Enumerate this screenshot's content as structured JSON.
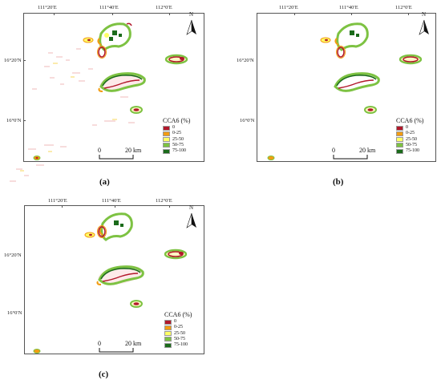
{
  "lon_labels": [
    "111°20′E",
    "111°40′E",
    "112°0′E"
  ],
  "lat_labels": [
    "16°20′N",
    "16°0′N"
  ],
  "north_label": "N",
  "legend": {
    "title": "CCA6 (%)",
    "classes": [
      {
        "label": "0",
        "color": "#b2182b"
      },
      {
        "label": "0-25",
        "color": "#f39c12"
      },
      {
        "label": "25-50",
        "color": "#ffff66"
      },
      {
        "label": "50-75",
        "color": "#7dc242"
      },
      {
        "label": "75-100",
        "color": "#1b6b1b"
      }
    ]
  },
  "scale": {
    "start": "0",
    "end": "20 km"
  },
  "panels": [
    {
      "caption": "(a)"
    },
    {
      "caption": "(b)"
    },
    {
      "caption": "(c)"
    }
  ]
}
